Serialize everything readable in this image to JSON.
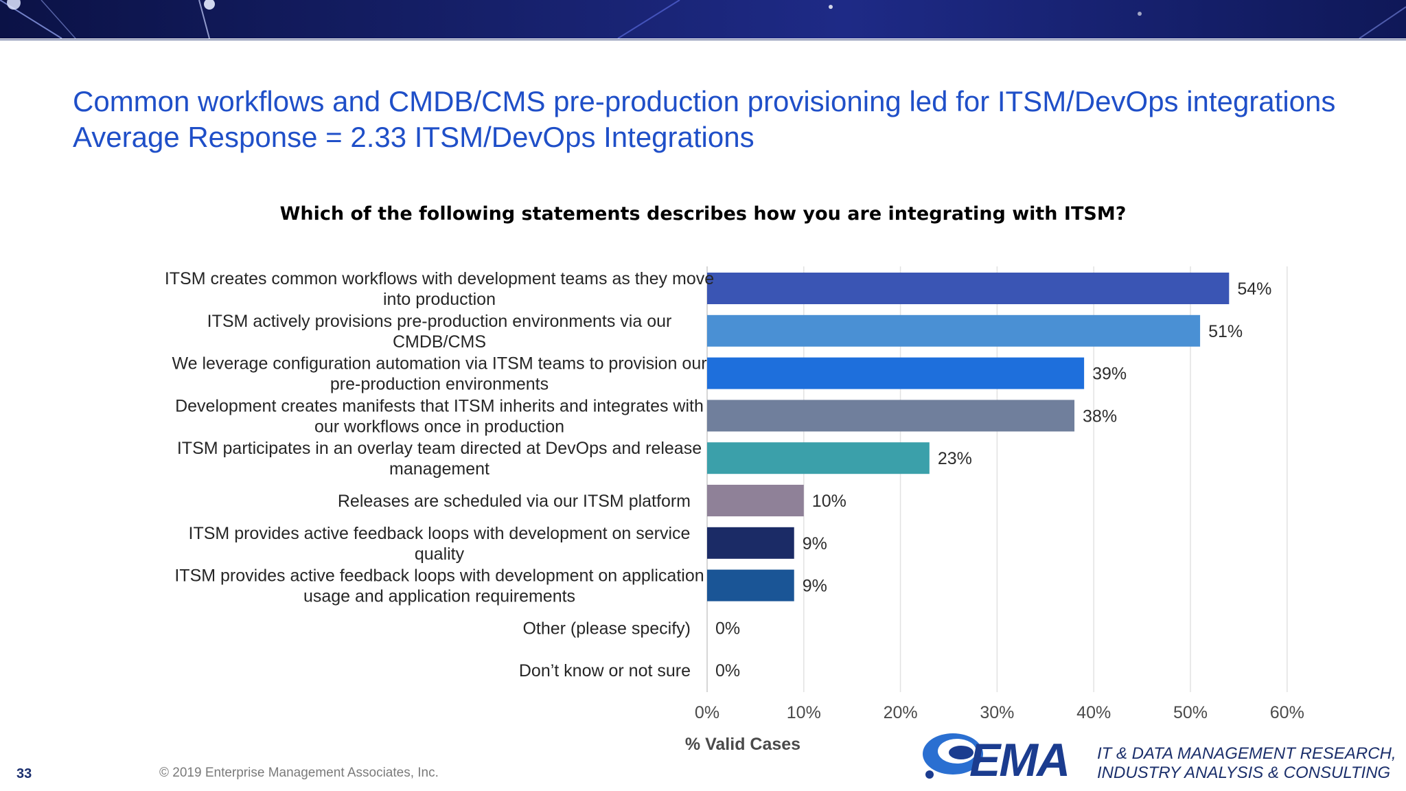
{
  "header": {
    "title_line1": "Common workflows and CMDB/CMS pre-production provisioning led for ITSM/DevOps integrations",
    "title_line2": "Average Response = 2.33 ITSM/DevOps Integrations"
  },
  "chart_data": {
    "type": "bar",
    "orientation": "horizontal",
    "title": "Which of the following statements describes how you are integrating with ITSM?",
    "xlabel": "% Valid Cases",
    "xlim": [
      0,
      60
    ],
    "x_ticks": [
      "0%",
      "10%",
      "20%",
      "30%",
      "40%",
      "50%",
      "60%"
    ],
    "grid": true,
    "categories": [
      [
        "ITSM creates common workflows with development teams as they move",
        "into production"
      ],
      [
        "ITSM actively provisions pre-production environments via our",
        "CMDB/CMS"
      ],
      [
        "We leverage configuration automation via ITSM teams to provision our",
        "pre-production environments"
      ],
      [
        "Development creates manifests that ITSM inherits and integrates with",
        "our workflows once in production"
      ],
      [
        "ITSM participates in an overlay team directed at DevOps and release",
        "management"
      ],
      [
        "Releases are scheduled via our ITSM platform"
      ],
      [
        "ITSM provides active feedback loops with development on service",
        "quality"
      ],
      [
        "ITSM provides active feedback loops with development on application",
        "usage and application requirements"
      ],
      [
        "Other (please specify)"
      ],
      [
        "Don’t know or not sure"
      ]
    ],
    "values": [
      54,
      51,
      39,
      38,
      23,
      10,
      9,
      9,
      0,
      0
    ],
    "value_labels": [
      "54%",
      "51%",
      "39%",
      "38%",
      "23%",
      "10%",
      "9%",
      "9%",
      "0%",
      "0%"
    ],
    "colors": [
      "#3a55b4",
      "#4a90d4",
      "#1e6fdc",
      "#707f9c",
      "#3ba0aa",
      "#8f8198",
      "#1b2b66",
      "#1a5596",
      "#999999",
      "#999999"
    ]
  },
  "footer": {
    "page_number": "33",
    "copyright": "© 2019 Enterprise Management Associates, Inc.",
    "tagline_line1": "IT & DATA MANAGEMENT RESEARCH,",
    "tagline_line2": "INDUSTRY ANALYSIS & CONSULTING",
    "logo_text": "EMA"
  }
}
